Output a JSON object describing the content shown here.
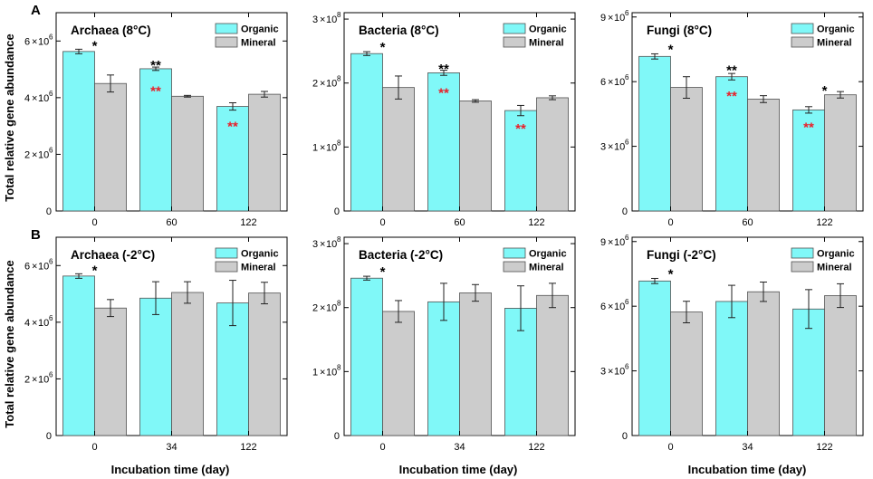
{
  "figure": {
    "ylabel": "Total relative gene abundance",
    "xlabel": "Incubation time (day)",
    "panel_labels": [
      "A",
      "B"
    ]
  },
  "colors": {
    "organic": "#80f8f8",
    "mineral": "#cccccc",
    "significance_black": "#000000",
    "significance_red": "#e8202a"
  },
  "chart_data": [
    {
      "type": "bar",
      "row": 0,
      "col": 0,
      "title": "Archaea (8°C)",
      "categories": [
        "0",
        "60",
        "122"
      ],
      "series": [
        {
          "name": "Organic",
          "values": [
            5.63,
            5.02,
            3.69
          ],
          "errors": [
            0.08,
            0.06,
            0.13
          ]
        },
        {
          "name": "Mineral",
          "values": [
            4.5,
            4.05,
            4.12
          ],
          "errors": [
            0.3,
            0.03,
            0.1
          ]
        }
      ],
      "ylim": [
        0,
        7
      ],
      "yticks": [
        0,
        2,
        4,
        6
      ],
      "y_exponent": "6",
      "significance": [
        {
          "category": 0,
          "text": "*",
          "color": "black",
          "y": 6.0
        },
        {
          "category": 1,
          "text": "**",
          "color": "black",
          "y": 5.3
        },
        {
          "category": 1,
          "text": "**",
          "color": "red",
          "y": 4.4
        },
        {
          "category": 2,
          "text": "**",
          "color": "red",
          "y": 3.15
        }
      ]
    },
    {
      "type": "bar",
      "row": 0,
      "col": 1,
      "title": "Bacteria (8°C)",
      "categories": [
        "0",
        "60",
        "122"
      ],
      "series": [
        {
          "name": "Organic",
          "values": [
            2.46,
            2.16,
            1.57
          ],
          "errors": [
            0.03,
            0.04,
            0.08
          ]
        },
        {
          "name": "Mineral",
          "values": [
            1.93,
            1.72,
            1.77
          ],
          "errors": [
            0.18,
            0.02,
            0.03
          ]
        }
      ],
      "ylim": [
        0,
        3.1
      ],
      "yticks": [
        0,
        1,
        2,
        3
      ],
      "y_exponent": "8",
      "significance": [
        {
          "category": 0,
          "text": "*",
          "color": "black",
          "y": 2.63
        },
        {
          "category": 1,
          "text": "**",
          "color": "black",
          "y": 2.29
        },
        {
          "category": 1,
          "text": "**",
          "color": "red",
          "y": 1.92
        },
        {
          "category": 2,
          "text": "**",
          "color": "red",
          "y": 1.36
        }
      ]
    },
    {
      "type": "bar",
      "row": 0,
      "col": 2,
      "title": "Fungi (8°C)",
      "categories": [
        "0",
        "60",
        "122"
      ],
      "series": [
        {
          "name": "Organic",
          "values": [
            7.17,
            6.23,
            4.69
          ],
          "errors": [
            0.12,
            0.15,
            0.15
          ]
        },
        {
          "name": "Mineral",
          "values": [
            5.73,
            5.19,
            5.39
          ],
          "errors": [
            0.5,
            0.16,
            0.15
          ]
        }
      ],
      "ylim": [
        0,
        9.2
      ],
      "yticks": [
        0,
        3,
        6,
        9
      ],
      "y_exponent": "6",
      "significance": [
        {
          "category": 0,
          "text": "*",
          "color": "black",
          "y": 7.7
        },
        {
          "category": 1,
          "text": "**",
          "color": "black",
          "y": 6.75
        },
        {
          "category": 1,
          "text": "**",
          "color": "red",
          "y": 5.55
        },
        {
          "category": 2,
          "text": "*",
          "color": "black",
          "y": 5.8
        },
        {
          "category": 2,
          "text": "**",
          "color": "red",
          "y": 4.1
        }
      ]
    },
    {
      "type": "bar",
      "row": 1,
      "col": 0,
      "title": "Archaea (-2°C)",
      "categories": [
        "0",
        "34",
        "122"
      ],
      "series": [
        {
          "name": "Organic",
          "values": [
            5.63,
            4.85,
            4.68
          ],
          "errors": [
            0.08,
            0.58,
            0.8
          ]
        },
        {
          "name": "Mineral",
          "values": [
            4.5,
            5.05,
            5.03
          ],
          "errors": [
            0.3,
            0.38,
            0.38
          ]
        }
      ],
      "ylim": [
        0,
        7
      ],
      "yticks": [
        0,
        2,
        4,
        6
      ],
      "y_exponent": "6",
      "significance": [
        {
          "category": 0,
          "text": "*",
          "color": "black",
          "y": 6.0
        }
      ]
    },
    {
      "type": "bar",
      "row": 1,
      "col": 1,
      "title": "Bacteria (-2°C)",
      "categories": [
        "0",
        "34",
        "122"
      ],
      "series": [
        {
          "name": "Organic",
          "values": [
            2.46,
            2.09,
            1.99
          ],
          "errors": [
            0.03,
            0.29,
            0.35
          ]
        },
        {
          "name": "Mineral",
          "values": [
            1.94,
            2.23,
            2.19
          ],
          "errors": [
            0.17,
            0.13,
            0.19
          ]
        }
      ],
      "ylim": [
        0,
        3.1
      ],
      "yticks": [
        0,
        1,
        2,
        3
      ],
      "y_exponent": "8",
      "significance": [
        {
          "category": 0,
          "text": "*",
          "color": "black",
          "y": 2.63
        }
      ]
    },
    {
      "type": "bar",
      "row": 1,
      "col": 2,
      "title": "Fungi (-2°C)",
      "categories": [
        "0",
        "34",
        "122"
      ],
      "series": [
        {
          "name": "Organic",
          "values": [
            7.17,
            6.22,
            5.87
          ],
          "errors": [
            0.12,
            0.75,
            0.9
          ]
        },
        {
          "name": "Mineral",
          "values": [
            5.73,
            6.67,
            6.49
          ],
          "errors": [
            0.5,
            0.45,
            0.55
          ]
        }
      ],
      "ylim": [
        0,
        9.2
      ],
      "yticks": [
        0,
        3,
        6,
        9
      ],
      "y_exponent": "6",
      "significance": [
        {
          "category": 0,
          "text": "*",
          "color": "black",
          "y": 7.7
        }
      ]
    }
  ]
}
